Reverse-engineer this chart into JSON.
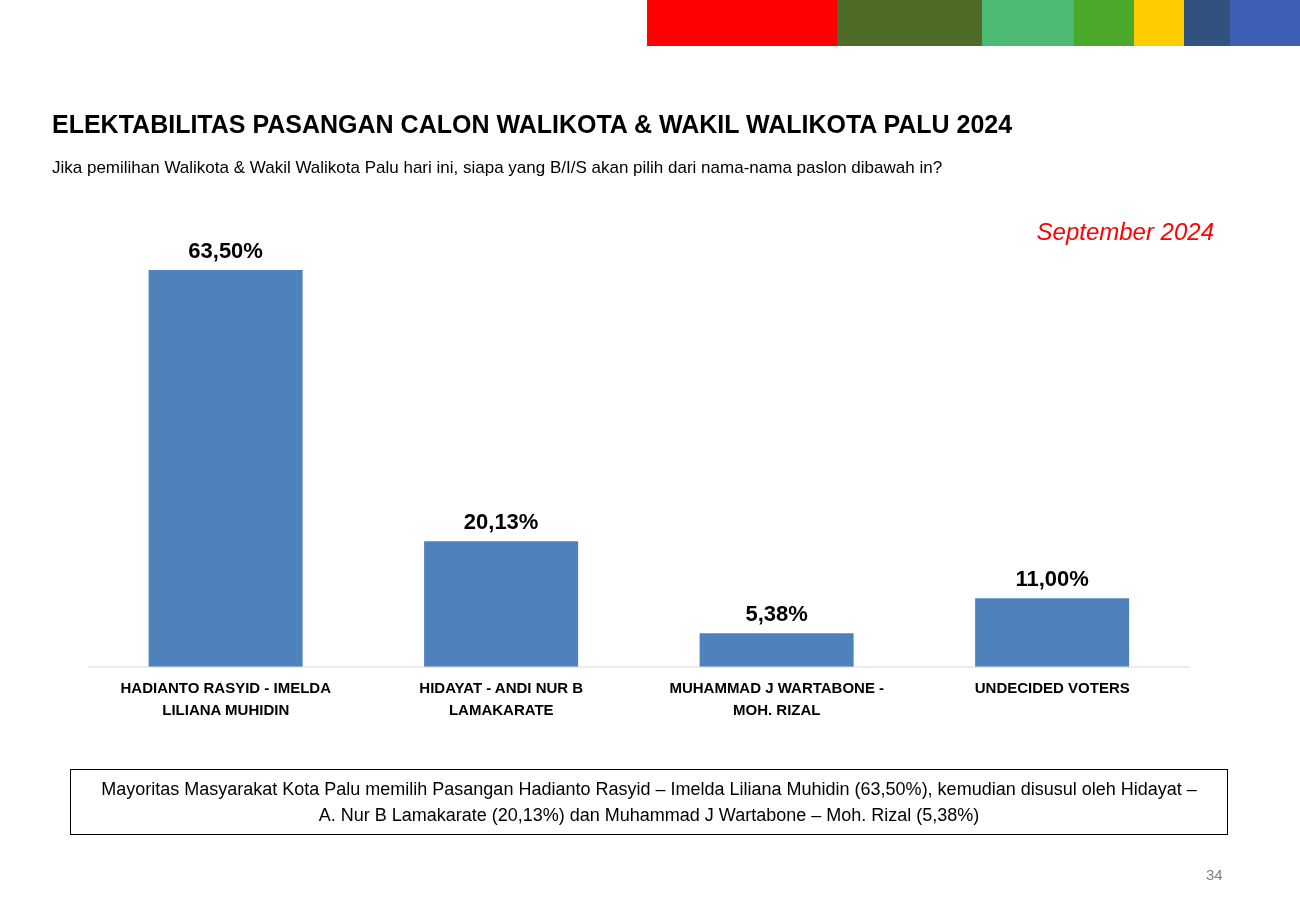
{
  "chart_data": {
    "type": "bar",
    "title": "ELEKTABILITAS PASANGAN CALON WALIKOTA & WAKIL WALIKOTA PALU 2024",
    "subtitle": "Jika pemilihan Walikota & Wakil Walikota Palu hari ini, siapa yang B/I/S akan pilih dari nama-nama paslon dibawah in?",
    "categories": [
      "HADIANTO RASYID - IMELDA LILIANA MUHIDIN",
      "HIDAYAT - ANDI NUR B LAMAKARATE",
      "MUHAMMAD J WARTABONE - MOH. RIZAL",
      "UNDECIDED VOTERS"
    ],
    "values": [
      63.5,
      20.13,
      5.38,
      11.0
    ],
    "value_labels": [
      "63,50%",
      "20,13%",
      "5,38%",
      "11,00%"
    ],
    "color": "#4f81bd",
    "annotations": [
      "September 2024",
      "Mayoritas Masyarakat  Kota Palu memilih Pasangan Hadianto Rasyid – Imelda Liliana Muhidin (63,50%), kemudian disusul oleh  Hidayat – A. Nur B Lamakarate (20,13%)  dan Muhammad J Wartabone – Moh. Rizal (5,38%)",
      "34"
    ]
  }
}
